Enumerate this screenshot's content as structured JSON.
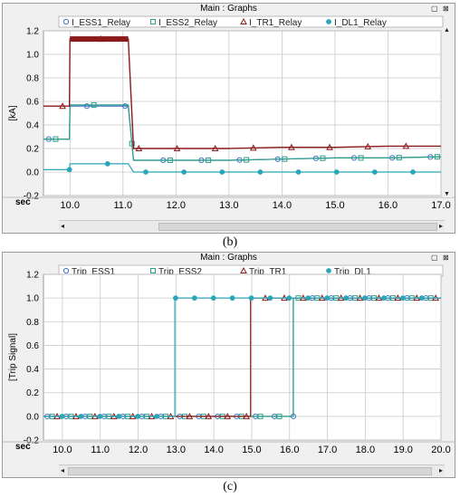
{
  "charts": [
    {
      "window_title": "Main : Graphs",
      "caption": "(b)",
      "x_unit_label": "sec",
      "chart_data": {
        "type": "line",
        "ylabel": "[kA]",
        "xlim": [
          9.5,
          17.0
        ],
        "ylim": [
          -0.2,
          1.2
        ],
        "x_ticks": [
          "10.0",
          "11.0",
          "12.0",
          "13.0",
          "14.0",
          "15.0",
          "16.0",
          "17.0"
        ],
        "y_ticks": [
          "-0.2",
          "0.0",
          "0.2",
          "0.4",
          "0.6",
          "0.8",
          "1.0",
          "1.2"
        ],
        "grid": true,
        "legend_position": "top",
        "series": [
          {
            "name": "I_ESS1_Relay",
            "color": "#3f74c8",
            "marker": "circle",
            "x": [
              9.5,
              9.99,
              10.0,
              11.1,
              11.2,
              12.0,
              13.0,
              14.0,
              15.0,
              16.0,
              17.0
            ],
            "y": [
              0.28,
              0.28,
              0.56,
              0.56,
              0.1,
              0.1,
              0.1,
              0.11,
              0.12,
              0.12,
              0.13
            ]
          },
          {
            "name": "I_ESS2_Relay",
            "color": "#2e9e86",
            "marker": "square",
            "x": [
              9.5,
              9.99,
              10.0,
              11.1,
              11.2,
              12.0,
              13.0,
              14.0,
              15.0,
              16.0,
              17.0
            ],
            "y": [
              0.28,
              0.28,
              0.57,
              0.57,
              0.1,
              0.1,
              0.1,
              0.11,
              0.12,
              0.12,
              0.13
            ]
          },
          {
            "name": "I_TR1_Relay",
            "color": "#8b1a1a",
            "marker": "triangle",
            "x": [
              9.5,
              9.99,
              10.0,
              11.1,
              11.2,
              12.0,
              13.0,
              14.0,
              15.0,
              16.0,
              17.0
            ],
            "y": [
              0.56,
              0.56,
              1.13,
              1.13,
              0.2,
              0.2,
              0.2,
              0.21,
              0.21,
              0.22,
              0.22
            ]
          },
          {
            "name": "I_DL1_Relay",
            "color": "#2aa6b8",
            "marker": "dot",
            "x": [
              9.5,
              9.99,
              10.0,
              11.1,
              11.2,
              12.0,
              13.0,
              14.0,
              15.0,
              16.0,
              17.0
            ],
            "y": [
              0.02,
              0.02,
              0.07,
              0.07,
              0.0,
              0.0,
              0.0,
              0.0,
              0.0,
              0.0,
              0.0
            ]
          }
        ]
      }
    },
    {
      "window_title": "Main : Graphs",
      "caption": "(c)",
      "x_unit_label": "sec",
      "chart_data": {
        "type": "line",
        "ylabel": "[Trip Signal]",
        "xlim": [
          9.5,
          20.0
        ],
        "ylim": [
          -0.2,
          1.2
        ],
        "x_ticks": [
          "10.0",
          "11.0",
          "12.0",
          "13.0",
          "14.0",
          "15.0",
          "16.0",
          "17.0",
          "18.0",
          "19.0",
          "20.0"
        ],
        "y_ticks": [
          "-0.2",
          "0.0",
          "0.2",
          "0.4",
          "0.6",
          "0.8",
          "1.0",
          "1.2"
        ],
        "grid": true,
        "legend_position": "top",
        "series": [
          {
            "name": "Trip_ESS1",
            "color": "#3f74c8",
            "marker": "circle",
            "x": [
              9.5,
              16.1,
              16.1,
              20.0
            ],
            "y": [
              0,
              0,
              1,
              1
            ]
          },
          {
            "name": "Trip_ESS2",
            "color": "#2e9e86",
            "marker": "square",
            "x": [
              9.5,
              16.1,
              16.1,
              20.0
            ],
            "y": [
              0,
              0,
              1,
              1
            ]
          },
          {
            "name": "Trip_TR1",
            "color": "#8b1a1a",
            "marker": "triangle",
            "x": [
              9.5,
              14.97,
              14.97,
              20.0
            ],
            "y": [
              0,
              0,
              1,
              1
            ]
          },
          {
            "name": "Trip_DL1",
            "color": "#2aa6b8",
            "marker": "dot",
            "x": [
              9.5,
              12.97,
              12.97,
              20.0
            ],
            "y": [
              0,
              0,
              1,
              1
            ]
          }
        ]
      }
    }
  ]
}
